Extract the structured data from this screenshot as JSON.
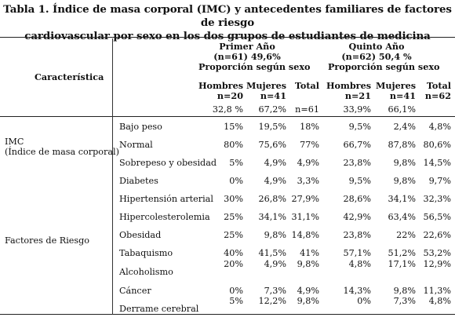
{
  "title": {
    "line1": "Tabla 1. Índice de masa corporal (IMC) y antecedentes familiares de factores de riesgo",
    "line2": "cardiovascular por sexo en los dos grupos de estudiantes de medicina"
  },
  "header": {
    "caracteristica": "Característica",
    "primer": {
      "name": "Primer Año",
      "n": "(n=61) 49,6%",
      "prop": "Proporción según sexo"
    },
    "quinto": {
      "name": "Quinto Año",
      "n": "(n=62) 50,4 %",
      "prop": "Proporción según sexo"
    },
    "sub": [
      {
        "label": "Hombres",
        "n": "n=20",
        "pct": "32,8 %"
      },
      {
        "label": "Mujeres",
        "n": "n=41",
        "pct": "67,2%"
      },
      {
        "label": "Total",
        "n": "",
        "pct": "n=61"
      },
      {
        "label": "Hombres",
        "n": "n=21",
        "pct": "33,9%"
      },
      {
        "label": "Mujeres",
        "n": "n=41",
        "pct": "66,1%"
      },
      {
        "label": "Total",
        "n": "n=62",
        "pct": ""
      }
    ]
  },
  "groups": {
    "imc_line1": "IMC",
    "imc_line2": "(Índice de masa corporal)",
    "factores": "Factores de Riesgo"
  },
  "rows": [
    {
      "label": "Bajo peso",
      "values": [
        "15%",
        "19,5%",
        "18%",
        "9,5%",
        "2,4%",
        "4,8%"
      ]
    },
    {
      "label": "Normal",
      "values": [
        "80%",
        "75,6%",
        "77%",
        "66,7%",
        "87,8%",
        "80,6%"
      ]
    },
    {
      "label": "Sobrepeso y obesidad",
      "values": [
        "5%",
        "4,9%",
        "4,9%",
        "23,8%",
        "9,8%",
        "14,5%"
      ]
    },
    {
      "label": "Diabetes",
      "values": [
        "0%",
        "4,9%",
        "3,3%",
        "9,5%",
        "9,8%",
        "9,7%"
      ]
    },
    {
      "label": "Hipertensión arterial",
      "values": [
        "30%",
        "26,8%",
        "27,9%",
        "28,6%",
        "34,1%",
        "32,3%"
      ]
    },
    {
      "label": "Hipercolesterolemia",
      "values": [
        "25%",
        "34,1%",
        "31,1%",
        "42,9%",
        "63,4%",
        "56,5%"
      ]
    },
    {
      "label": "Obesidad",
      "values": [
        "25%",
        "9,8%",
        "14,8%",
        "23,8%",
        "22%",
        "22,6%"
      ]
    },
    {
      "label": "Tabaquismo",
      "values": [
        "40%",
        "41,5%",
        "41%",
        "57,1%",
        "51,2%",
        "53,2%"
      ]
    },
    {
      "label": "Alcoholismo",
      "values": [
        "20%",
        "4,9%",
        "9,8%",
        "4,8%",
        "17,1%",
        "12,9%"
      ]
    },
    {
      "label": "Cáncer",
      "values": [
        "0%",
        "7,3%",
        "4,9%",
        "14,3%",
        "9,8%",
        "11,3%"
      ]
    },
    {
      "label": "Derrame cerebral",
      "values": [
        "5%",
        "12,2%",
        "9,8%",
        "0%",
        "7,3%",
        "4,8%"
      ]
    }
  ]
}
